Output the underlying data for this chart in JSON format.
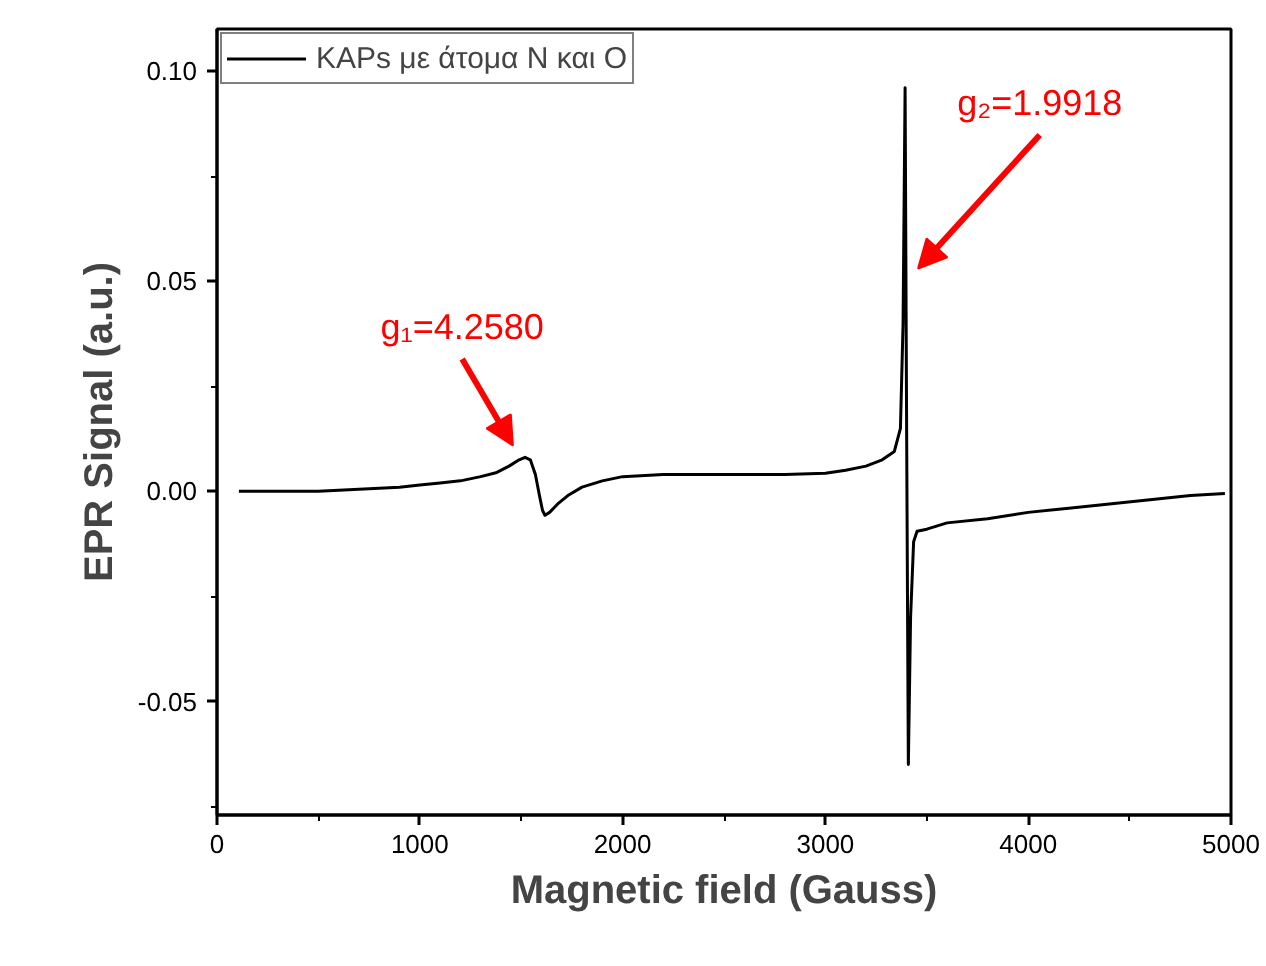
{
  "chart_data": {
    "type": "line",
    "xlabel": "Magnetic field (Gauss)",
    "ylabel": "EPR Signal (a.u.)",
    "xlim": [
      0,
      5000
    ],
    "ylim": [
      -0.077,
      0.11
    ],
    "xticks": [
      0,
      {
        "value": 500,
        "label": null
      },
      1000,
      {
        "value": 1500,
        "label": null
      },
      2000,
      {
        "value": 2500,
        "label": null
      },
      3000,
      {
        "value": 3500,
        "label": null
      },
      4000,
      {
        "value": 4500,
        "label": null
      },
      5000
    ],
    "yticks": [
      {
        "value": -0.075,
        "label": null
      },
      {
        "value": -0.05,
        "label": "-0.05"
      },
      {
        "value": -0.025,
        "label": null
      },
      {
        "value": 0,
        "label": "0.00"
      },
      {
        "value": 0.025,
        "label": null
      },
      {
        "value": 0.05,
        "label": "0.05"
      },
      {
        "value": 0.075,
        "label": null
      },
      {
        "value": 0.1,
        "label": "0.10"
      }
    ],
    "x": [
      108,
      300,
      500,
      700,
      900,
      1000,
      1100,
      1200,
      1300,
      1380,
      1440,
      1490,
      1519,
      1545,
      1570,
      1590,
      1605,
      1617,
      1640,
      1680,
      1730,
      1800,
      1900,
      2000,
      2200,
      2400,
      2600,
      2800,
      3000,
      3100,
      3200,
      3280,
      3340,
      3370,
      3383,
      3393,
      3397,
      3400,
      3409,
      3420,
      3435,
      3452,
      3500,
      3600,
      3800,
      4000,
      4200,
      4400,
      4600,
      4800,
      4970
    ],
    "series": [
      {
        "name": "KAPs με άτομα N και O",
        "color": "#000000",
        "values": [
          0.0,
          0.0,
          0.0,
          0.0005,
          0.001,
          0.0015,
          0.002,
          0.0025,
          0.0035,
          0.0045,
          0.006,
          0.0075,
          0.0081,
          0.0075,
          0.004,
          -0.001,
          -0.0045,
          -0.0057,
          -0.005,
          -0.003,
          -0.001,
          0.001,
          0.0025,
          0.0035,
          0.004,
          0.004,
          0.004,
          0.004,
          0.0043,
          0.005,
          0.006,
          0.0075,
          0.0095,
          0.015,
          0.04,
          0.096,
          0.053,
          0.02,
          -0.065,
          -0.03,
          -0.012,
          -0.0095,
          -0.009,
          -0.0075,
          -0.0065,
          -0.005,
          -0.004,
          -0.003,
          -0.002,
          -0.001,
          -0.0005
        ]
      }
    ],
    "annotations": [
      {
        "text": "g₁=4.2580",
        "x": 1519,
        "y": 0.0081
      },
      {
        "text": "g₂=1.9918",
        "x": 3397,
        "y": 0.053
      }
    ],
    "legend": "top left",
    "grid": false,
    "line_style": "solid",
    "marker": "none"
  }
}
